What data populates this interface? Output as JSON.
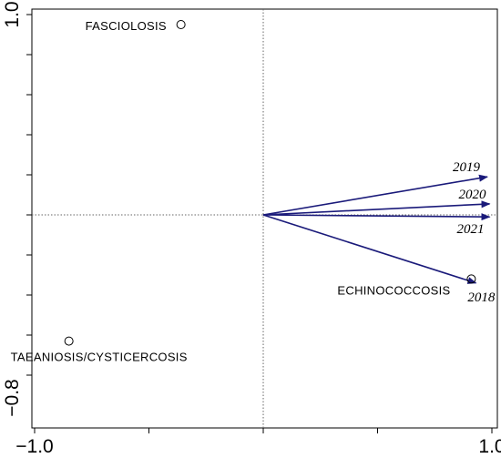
{
  "chart_data": {
    "type": "scatter",
    "title": "",
    "xlabel": "",
    "ylabel": "",
    "xlim": [
      -1.0,
      1.0
    ],
    "ylim": [
      -0.8,
      1.0
    ],
    "x_tick_labels": [
      "−1.0",
      "1.0"
    ],
    "y_tick_labels": [
      "−0.8",
      "1.0"
    ],
    "grid": false,
    "reference_lines": {
      "x": 0,
      "y": 0
    },
    "points": [
      {
        "name": "FASCIOLOSIS",
        "x": -0.36,
        "y": 0.95
      },
      {
        "name": "TAEANIOSIS/CYSTICERCOSIS",
        "x": -0.85,
        "y": -0.63
      },
      {
        "name": "ECHINOCOCCOSIS",
        "x": 0.91,
        "y": -0.32
      }
    ],
    "vectors": [
      {
        "name": "2019",
        "x": 0.98,
        "y": 0.19
      },
      {
        "name": "2020",
        "x": 0.99,
        "y": 0.055
      },
      {
        "name": "2021",
        "x": 0.99,
        "y": -0.01
      },
      {
        "name": "2018",
        "x": 0.93,
        "y": -0.34
      }
    ],
    "colors": {
      "vector": "#1a1a7a",
      "axes": "#000000",
      "reference": "#666666"
    }
  }
}
